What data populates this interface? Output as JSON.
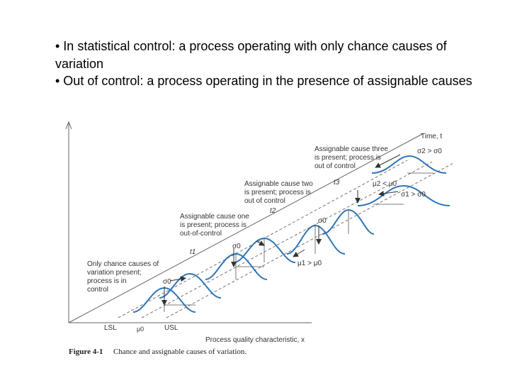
{
  "slide": {
    "bullets": [
      "• In statistical control: a process operating with only chance causes of variation",
      "• Out of control: a process operating in the presence of assignable causes"
    ]
  },
  "figure": {
    "axis_labels": {
      "time": "Time, t",
      "quality": "Process quality characteristic, x"
    },
    "spec_labels": {
      "lsl": "LSL",
      "usl": "USL",
      "mu0": "μ0"
    },
    "notes": {
      "chance": [
        "Only chance causes of",
        "variation present;",
        "process is in",
        "control"
      ],
      "cause_one": [
        "Assignable cause one",
        "is present; process is",
        "out-of-control"
      ],
      "cause_two": [
        "Assignable cause two",
        "is present; process is",
        "out of control"
      ],
      "cause_three": [
        "Assignable cause three",
        "is present; process is",
        "out of control"
      ]
    },
    "time_labels": {
      "t1": "t1",
      "t2": "t2",
      "t3": "t3"
    },
    "sigma_labels": {
      "s0_a": "σ0",
      "s0_b": "σ0",
      "s0_c": "σ0",
      "s1_gt": "σ1 > σ0",
      "s2_gt": "σ2 > σ0"
    },
    "mean_labels": {
      "mu1_gt": "μ1 > μ0",
      "mu2_lt": "μ2 < μ0"
    },
    "caption": {
      "label": "Figure 4-1",
      "text": "Chance and assignable causes of variation."
    },
    "colors": {
      "curve": "#2e75b6",
      "guide": "#555555",
      "axis": "#666666"
    }
  }
}
